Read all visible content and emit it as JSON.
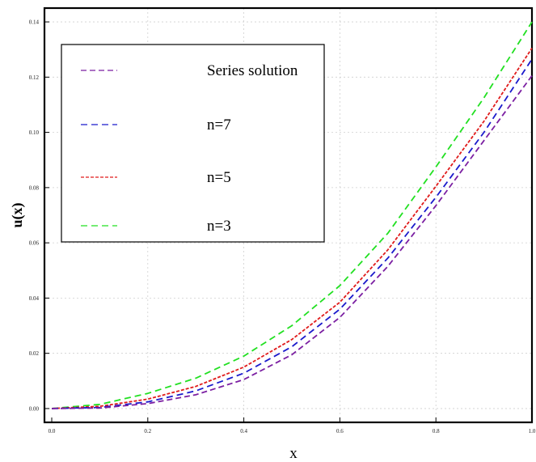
{
  "chart_data": {
    "type": "line",
    "xlabel": "x",
    "ylabel": "u(x)",
    "xlim": [
      0.0,
      1.0
    ],
    "ylim": [
      -0.005,
      0.145
    ],
    "grid": true,
    "legend_position": "top-left",
    "x_ticks": [
      "0.0",
      "0.2",
      "0.4",
      "0.6",
      "0.8",
      "1.0"
    ],
    "y_ticks": [
      "0.00",
      "0.02",
      "0.04",
      "0.06",
      "0.08",
      "0.10",
      "0.12",
      "0.14"
    ],
    "x": [
      0.0,
      0.1,
      0.2,
      0.3,
      0.4,
      0.5,
      0.6,
      0.7,
      0.8,
      0.9,
      1.0
    ],
    "series": [
      {
        "name": "Series solution",
        "color": "#7b1fa2",
        "dash": "7,4",
        "values": [
          0.0,
          0.0002,
          0.0018,
          0.005,
          0.0105,
          0.0195,
          0.033,
          0.0515,
          0.0735,
          0.097,
          0.1205
        ]
      },
      {
        "name": "n=7",
        "color": "#1a1acc",
        "dash": "8,5",
        "values": [
          0.0,
          0.0004,
          0.0024,
          0.0064,
          0.0128,
          0.0224,
          0.036,
          0.0545,
          0.0765,
          0.1,
          0.1265
        ]
      },
      {
        "name": "n=5",
        "color": "#e01b1b",
        "dash": "4,2",
        "values": [
          0.0,
          0.0008,
          0.0034,
          0.008,
          0.015,
          0.025,
          0.0385,
          0.0575,
          0.0805,
          0.104,
          0.1305
        ]
      },
      {
        "name": "n=3",
        "color": "#22e022",
        "dash": "8,5",
        "values": [
          0.0,
          0.0015,
          0.0055,
          0.011,
          0.019,
          0.03,
          0.0445,
          0.0635,
          0.0875,
          0.1125,
          0.14
        ]
      }
    ]
  }
}
